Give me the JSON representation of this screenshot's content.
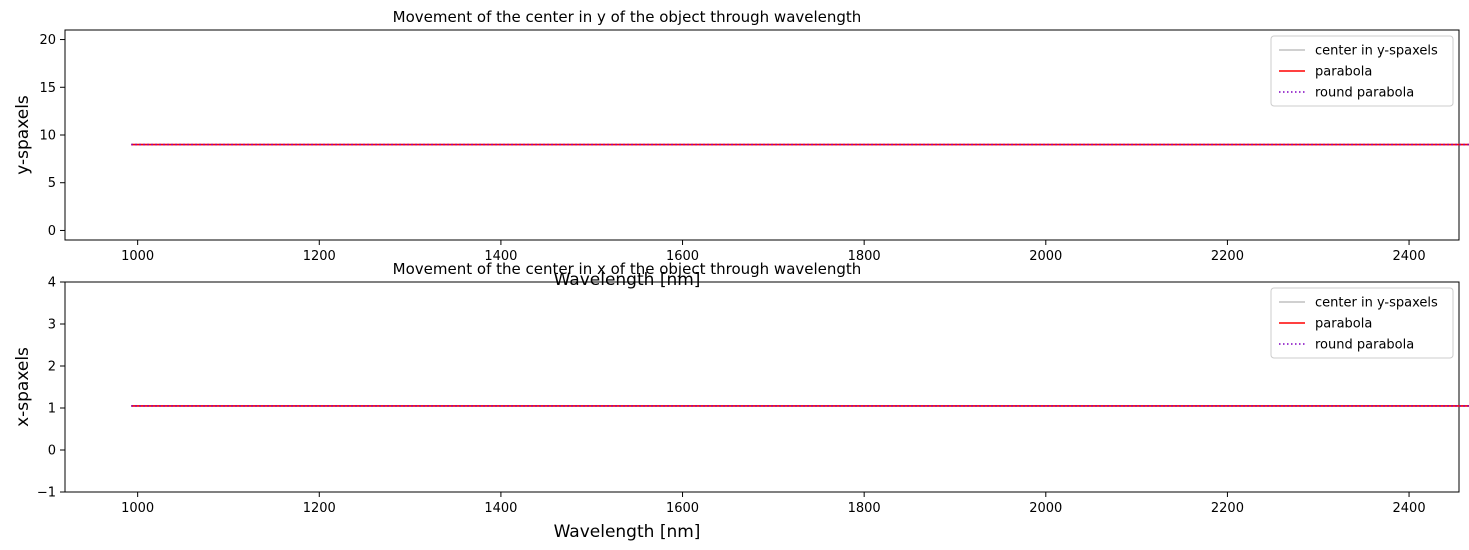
{
  "chart_data": [
    {
      "type": "line",
      "title": "Movement of the center in y of the object through wavelength",
      "xlabel": "Wavelength [nm]",
      "ylabel": "y-spaxels",
      "xlim": [
        920,
        2455
      ],
      "ylim": [
        -1,
        21
      ],
      "xticks": [
        1000,
        1200,
        1400,
        1600,
        1800,
        2000,
        2200,
        2400
      ],
      "yticks": [
        0,
        5,
        10,
        15,
        20
      ],
      "legend_position": "top-right",
      "grid": false,
      "x": [
        993,
        2480
      ],
      "series": [
        {
          "name": "center in y-spaxels",
          "values": [
            9.0,
            9.0
          ],
          "color": "#c0c0c0",
          "dash": "solid"
        },
        {
          "name": "parabola",
          "values": [
            9.0,
            9.0
          ],
          "color": "#ff0000",
          "dash": "solid"
        },
        {
          "name": "round parabola",
          "values": [
            9.0,
            9.0
          ],
          "color": "#8000c0",
          "dash": "dotted"
        }
      ]
    },
    {
      "type": "line",
      "title": "Movement of the center in x of the object through wavelength",
      "xlabel": "Wavelength [nm]",
      "ylabel": "x-spaxels",
      "xlim": [
        920,
        2455
      ],
      "ylim": [
        -1,
        4
      ],
      "xticks": [
        1000,
        1200,
        1400,
        1600,
        1800,
        2000,
        2200,
        2400
      ],
      "yticks": [
        -1,
        0,
        1,
        2,
        3,
        4
      ],
      "legend_position": "top-right",
      "grid": false,
      "x": [
        993,
        2480
      ],
      "series": [
        {
          "name": "center in y-spaxels",
          "values": [
            1.05,
            1.05
          ],
          "color": "#c0c0c0",
          "dash": "solid"
        },
        {
          "name": "parabola",
          "values": [
            1.05,
            1.05
          ],
          "color": "#ff0000",
          "dash": "solid"
        },
        {
          "name": "round parabola",
          "values": [
            1.05,
            1.05
          ],
          "color": "#8000c0",
          "dash": "dotted"
        }
      ]
    }
  ]
}
